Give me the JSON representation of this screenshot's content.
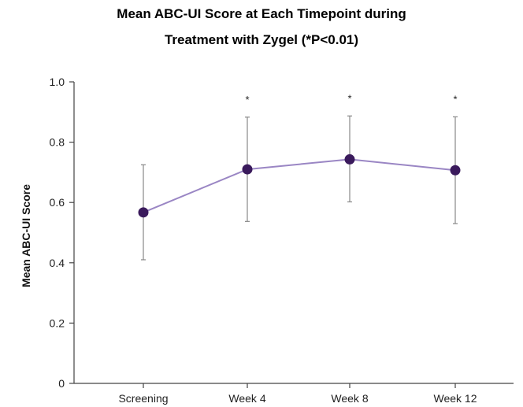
{
  "chart_data": {
    "type": "line",
    "title_lines": [
      "Mean ABC-UI Score at Each Timepoint during",
      "Treatment with Zygel (*P<0.01)"
    ],
    "xlabel": "",
    "ylabel": "Mean ABC-UI Score",
    "categories": [
      "Screening",
      "Week 4",
      "Week 8",
      "Week 12"
    ],
    "ylim": [
      0,
      1.0
    ],
    "yticks": [
      0,
      0.2,
      0.4,
      0.6,
      0.8,
      1.0
    ],
    "ytick_labels": [
      "0",
      "0.2",
      "0.4",
      "0.6",
      "0.8",
      "1.0"
    ],
    "grid": false,
    "series": [
      {
        "values": [
          0.567,
          0.71,
          0.743,
          0.707
        ],
        "error_low": [
          0.41,
          0.537,
          0.602,
          0.53
        ],
        "error_high": [
          0.725,
          0.883,
          0.887,
          0.884
        ]
      }
    ],
    "annotations": [
      "",
      "*",
      "*",
      "*"
    ],
    "colors": {
      "line": "#9a86c4",
      "marker": "#3a1a5c",
      "error_bar": "#888888",
      "axis": "#444444"
    }
  }
}
